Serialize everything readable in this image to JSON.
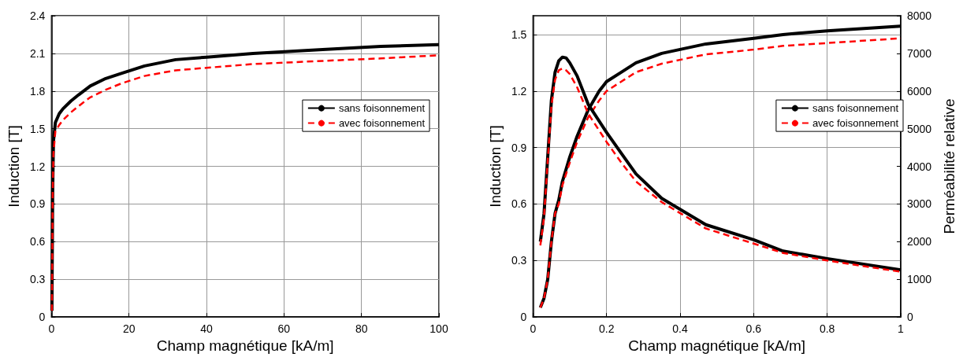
{
  "chart_data": [
    {
      "type": "line",
      "xlabel": "Champ magnétique [kA/m]",
      "ylabel": "Induction [T]",
      "xlim": [
        0,
        100
      ],
      "xticks": [
        0,
        20,
        40,
        60,
        80,
        100
      ],
      "ylim": [
        0,
        2.4
      ],
      "yticks": [
        0,
        0.3,
        0.6,
        0.9,
        1.2,
        1.5,
        1.8,
        2.1,
        2.4
      ],
      "grid": true,
      "legend": "right",
      "marker": "none",
      "series": [
        {
          "name": "sans foisonnement",
          "color": "#000000",
          "line_style": "solid",
          "x": [
            0.1,
            0.3,
            0.5,
            1,
            2,
            3,
            5,
            7,
            10,
            14,
            18,
            24,
            32,
            40,
            52,
            70,
            85,
            100
          ],
          "values": [
            0.05,
            1.0,
            1.4,
            1.55,
            1.62,
            1.66,
            1.72,
            1.77,
            1.84,
            1.9,
            1.94,
            2.0,
            2.05,
            2.07,
            2.1,
            2.13,
            2.155,
            2.17
          ]
        },
        {
          "name": "avec foisonnement",
          "color": "#ff0000",
          "line_style": "dashed",
          "x": [
            0.1,
            0.3,
            0.5,
            1,
            2,
            3,
            5,
            7,
            10,
            14,
            18,
            24,
            32,
            40,
            52,
            70,
            85,
            100
          ],
          "values": [
            0.05,
            0.95,
            1.3,
            1.48,
            1.53,
            1.57,
            1.63,
            1.68,
            1.75,
            1.81,
            1.86,
            1.92,
            1.965,
            1.985,
            2.015,
            2.04,
            2.06,
            2.085
          ]
        }
      ]
    },
    {
      "type": "line",
      "xlabel": "Champ magnétique [kA/m]",
      "ylabel": "Induction [T]",
      "y2label": "Perméabilité relative",
      "xlim": [
        0,
        1
      ],
      "xticks": [
        0,
        0.2,
        0.4,
        0.6,
        0.8,
        1
      ],
      "ylim": [
        0,
        1.6
      ],
      "yticks": [
        0,
        0.3,
        0.6,
        0.9,
        1.2,
        1.5
      ],
      "y2lim": [
        0,
        8000
      ],
      "y2ticks": [
        0,
        1000,
        2000,
        3000,
        4000,
        5000,
        6000,
        7000,
        8000
      ],
      "grid": true,
      "legend": "right",
      "marker": "none",
      "series": [
        {
          "name": "sans foisonnement",
          "color": "#000000",
          "line_style": "solid",
          "x": [
            0.02,
            0.03,
            0.04,
            0.05,
            0.06,
            0.07,
            0.08,
            0.1,
            0.12,
            0.15,
            0.18,
            0.2,
            0.24,
            0.28,
            0.35,
            0.47,
            0.6,
            0.68,
            0.8,
            1.0
          ],
          "values": [
            0.05,
            0.1,
            0.2,
            0.4,
            0.55,
            0.62,
            0.72,
            0.85,
            0.96,
            1.1,
            1.2,
            1.25,
            1.3,
            1.35,
            1.4,
            1.45,
            1.48,
            1.5,
            1.52,
            1.545
          ]
        },
        {
          "name": "avec foisonnement",
          "color": "#ff0000",
          "line_style": "dashed",
          "x": [
            0.02,
            0.03,
            0.04,
            0.05,
            0.06,
            0.07,
            0.08,
            0.1,
            0.12,
            0.15,
            0.18,
            0.2,
            0.24,
            0.28,
            0.35,
            0.47,
            0.6,
            0.68,
            0.8,
            1.0
          ],
          "values": [
            0.05,
            0.1,
            0.2,
            0.4,
            0.55,
            0.6,
            0.7,
            0.82,
            0.93,
            1.06,
            1.15,
            1.2,
            1.25,
            1.3,
            1.345,
            1.395,
            1.42,
            1.44,
            1.455,
            1.48
          ]
        },
        {
          "name": "sans foisonnement",
          "color": "#000000",
          "line_style": "solid",
          "axis": "y2",
          "x": [
            0.02,
            0.03,
            0.04,
            0.05,
            0.06,
            0.07,
            0.08,
            0.09,
            0.1,
            0.12,
            0.15,
            0.2,
            0.24,
            0.28,
            0.35,
            0.47,
            0.6,
            0.68,
            0.8,
            1.0
          ],
          "values": [
            2000,
            2750,
            4250,
            5750,
            6500,
            6800,
            6900,
            6880,
            6750,
            6400,
            5650,
            4900,
            4350,
            3800,
            3150,
            2450,
            2050,
            1750,
            1550,
            1250
          ]
        },
        {
          "name": "avec foisonnement",
          "color": "#ff0000",
          "line_style": "dashed",
          "axis": "y2",
          "x": [
            0.02,
            0.03,
            0.04,
            0.05,
            0.06,
            0.07,
            0.08,
            0.09,
            0.1,
            0.12,
            0.15,
            0.2,
            0.24,
            0.28,
            0.35,
            0.47,
            0.6,
            0.68,
            0.8,
            1.0
          ],
          "values": [
            1900,
            2650,
            4150,
            5600,
            6300,
            6550,
            6600,
            6550,
            6450,
            6100,
            5400,
            4650,
            4100,
            3600,
            3050,
            2350,
            1950,
            1700,
            1500,
            1200
          ]
        }
      ]
    }
  ]
}
